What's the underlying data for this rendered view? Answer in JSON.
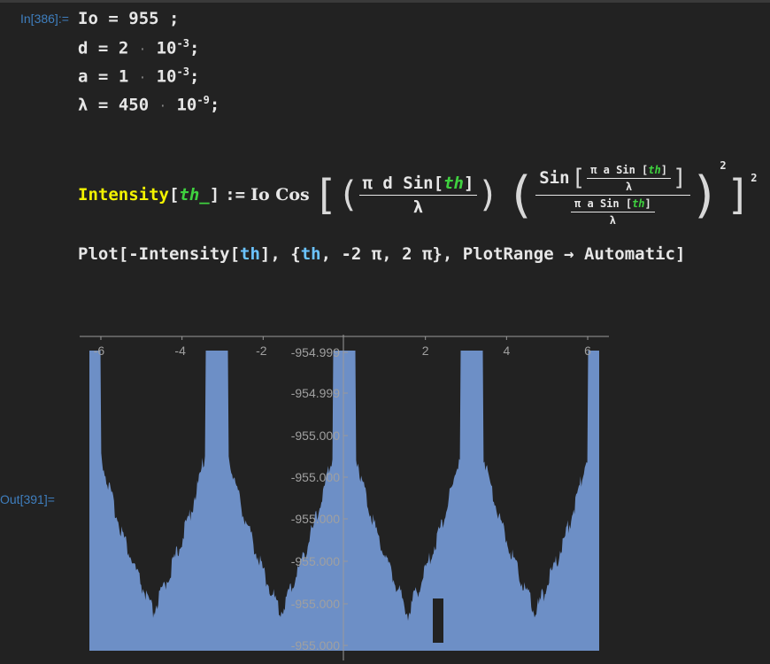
{
  "cells": {
    "in_label": "In[386]:=",
    "out_label": "Out[391]=",
    "line1": {
      "lhs": "Io",
      "op": "=",
      "value": "955",
      "end": ";"
    },
    "line2": {
      "lhs": "d",
      "op": "=",
      "mant": "2",
      "base": "10",
      "exp": "-3",
      "end": ";"
    },
    "line3": {
      "lhs": "a",
      "op": "=",
      "mant": "1",
      "base": "10",
      "exp": "-3",
      "end": ";"
    },
    "line4": {
      "lhs": "λ",
      "op": "=",
      "mant": "450",
      "base": "10",
      "exp": "-9",
      "end": ";"
    },
    "intensity": {
      "fname": "Intensity",
      "arg": "th_",
      "assign": ":=",
      "io_cos": "Io Cos",
      "frac1_num_a": "π d Sin",
      "th": "th",
      "lambda": "λ",
      "sin": "Sin",
      "pi_a_sin": "π a Sin",
      "exp2": "2"
    },
    "plot_cmd": {
      "p1": "Plot[-Intensity[",
      "th": "th",
      "p2": "], {",
      "p3": ", -2 π, 2 π}, PlotRange → Automatic]"
    }
  },
  "chart_data": {
    "type": "area",
    "x_range": [
      -6.2832,
      6.2832
    ],
    "x_ticks": [
      "-6",
      "-4",
      "-2",
      "2",
      "4",
      "6"
    ],
    "x_tick_values": [
      -6,
      -4,
      -2,
      2,
      4,
      6
    ],
    "y_ticks": [
      "-954.999",
      "-954.999",
      "-955.000",
      "-955.000",
      "-955.000",
      "-955.000",
      "-955.000",
      "-955.000"
    ],
    "fill_color": "#6d8fc6",
    "axis_color": "#9a9a9a",
    "note_series": "-Intensity[th] for th from -2π to 2π"
  }
}
